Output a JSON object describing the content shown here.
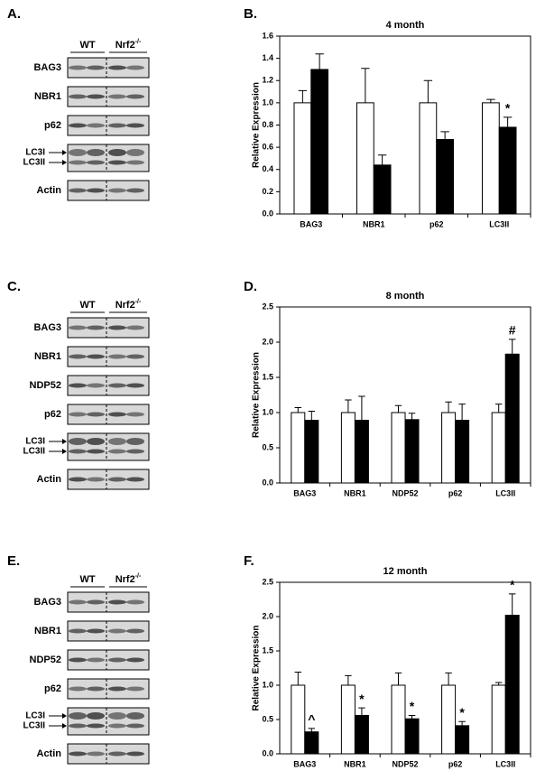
{
  "blots": [
    {
      "panel": "A.",
      "groups": [
        {
          "text": "WT"
        },
        {
          "text": "Nrf2",
          "sup": "-/-"
        }
      ],
      "rows": [
        {
          "labels": [
            "BAG3"
          ]
        },
        {
          "labels": [
            "NBR1"
          ]
        },
        {
          "labels": [
            "p62"
          ]
        },
        {
          "labels": [
            "LC3I",
            "LC3II"
          ]
        },
        {
          "labels": [
            "Actin"
          ]
        }
      ]
    },
    {
      "panel": "C.",
      "groups": [
        {
          "text": "WT"
        },
        {
          "text": "Nrf2",
          "sup": "-/-"
        }
      ],
      "rows": [
        {
          "labels": [
            "BAG3"
          ]
        },
        {
          "labels": [
            "NBR1"
          ]
        },
        {
          "labels": [
            "NDP52"
          ]
        },
        {
          "labels": [
            "p62"
          ]
        },
        {
          "labels": [
            "LC3I",
            "LC3II"
          ]
        },
        {
          "labels": [
            "Actin"
          ]
        }
      ]
    },
    {
      "panel": "E.",
      "groups": [
        {
          "text": "WT"
        },
        {
          "text": "Nrf2",
          "sup": "-/-"
        }
      ],
      "rows": [
        {
          "labels": [
            "BAG3"
          ]
        },
        {
          "labels": [
            "NBR1"
          ]
        },
        {
          "labels": [
            "NDP52"
          ]
        },
        {
          "labels": [
            "p62"
          ]
        },
        {
          "labels": [
            "LC3I",
            "LC3II"
          ]
        },
        {
          "labels": [
            "Actin"
          ]
        }
      ]
    }
  ],
  "chart_data": [
    {
      "type": "bar",
      "panel": "B.",
      "title": "4 month",
      "y_label": "Relative Expression",
      "categories": [
        "BAG3",
        "NBR1",
        "p62",
        "LC3II"
      ],
      "series": [
        {
          "color": "#ffffff",
          "values": [
            1.0,
            1.0,
            1.0,
            1.0
          ],
          "errors": [
            0.11,
            0.31,
            0.2,
            0.03
          ]
        },
        {
          "color": "#000000",
          "values": [
            1.3,
            0.44,
            0.67,
            0.78
          ],
          "errors": [
            0.14,
            0.09,
            0.07,
            0.09
          ],
          "markers": [
            null,
            null,
            null,
            "*"
          ]
        }
      ],
      "ylim": [
        0,
        1.6
      ],
      "yticks": [
        {
          "value": 0,
          "label": "0.0"
        },
        0.2,
        0.4,
        0.6,
        0.8,
        {
          "value": 1,
          "label": "1.0"
        },
        1.2,
        1.4,
        1.6
      ]
    },
    {
      "type": "bar",
      "panel": "D.",
      "title": "8 month",
      "y_label": "Relative Expression",
      "categories": [
        "BAG3",
        "NBR1",
        "NDP52",
        "p62",
        "LC3II"
      ],
      "series": [
        {
          "color": "#ffffff",
          "values": [
            1.0,
            1.0,
            1.0,
            1.0,
            1.0
          ],
          "errors": [
            0.07,
            0.18,
            0.1,
            0.15,
            0.12
          ]
        },
        {
          "color": "#000000",
          "values": [
            0.89,
            0.89,
            0.9,
            0.89,
            1.83
          ],
          "errors": [
            0.13,
            0.34,
            0.09,
            0.23,
            0.21
          ],
          "markers": [
            null,
            null,
            null,
            null,
            "#"
          ]
        }
      ],
      "ylim": [
        0,
        2.5
      ],
      "yticks": [
        {
          "value": 0,
          "label": "0.0"
        },
        0.5,
        {
          "value": 1,
          "label": "1.0"
        },
        1.5,
        {
          "value": 2,
          "label": "2.0"
        },
        2.5
      ]
    },
    {
      "type": "bar",
      "panel": "F.",
      "title": "12 month",
      "y_label": "Relative Expression",
      "categories": [
        "BAG3",
        "NBR1",
        "NDP52",
        "p62",
        "LC3II"
      ],
      "series": [
        {
          "color": "#ffffff",
          "values": [
            1.0,
            1.0,
            1.0,
            1.0,
            1.0
          ],
          "errors": [
            0.19,
            0.14,
            0.18,
            0.18,
            0.04
          ]
        },
        {
          "color": "#000000",
          "values": [
            0.32,
            0.56,
            0.51,
            0.41,
            2.02
          ],
          "errors": [
            0.05,
            0.11,
            0.05,
            0.06,
            0.31
          ],
          "markers": [
            "^",
            "*",
            "*",
            "*",
            "*"
          ]
        }
      ],
      "ylim": [
        0,
        2.5
      ],
      "yticks": [
        {
          "value": 0,
          "label": "0.0"
        },
        0.5,
        {
          "value": 1,
          "label": "1.0"
        },
        1.5,
        {
          "value": 2,
          "label": "2.0"
        },
        2.5
      ]
    }
  ]
}
